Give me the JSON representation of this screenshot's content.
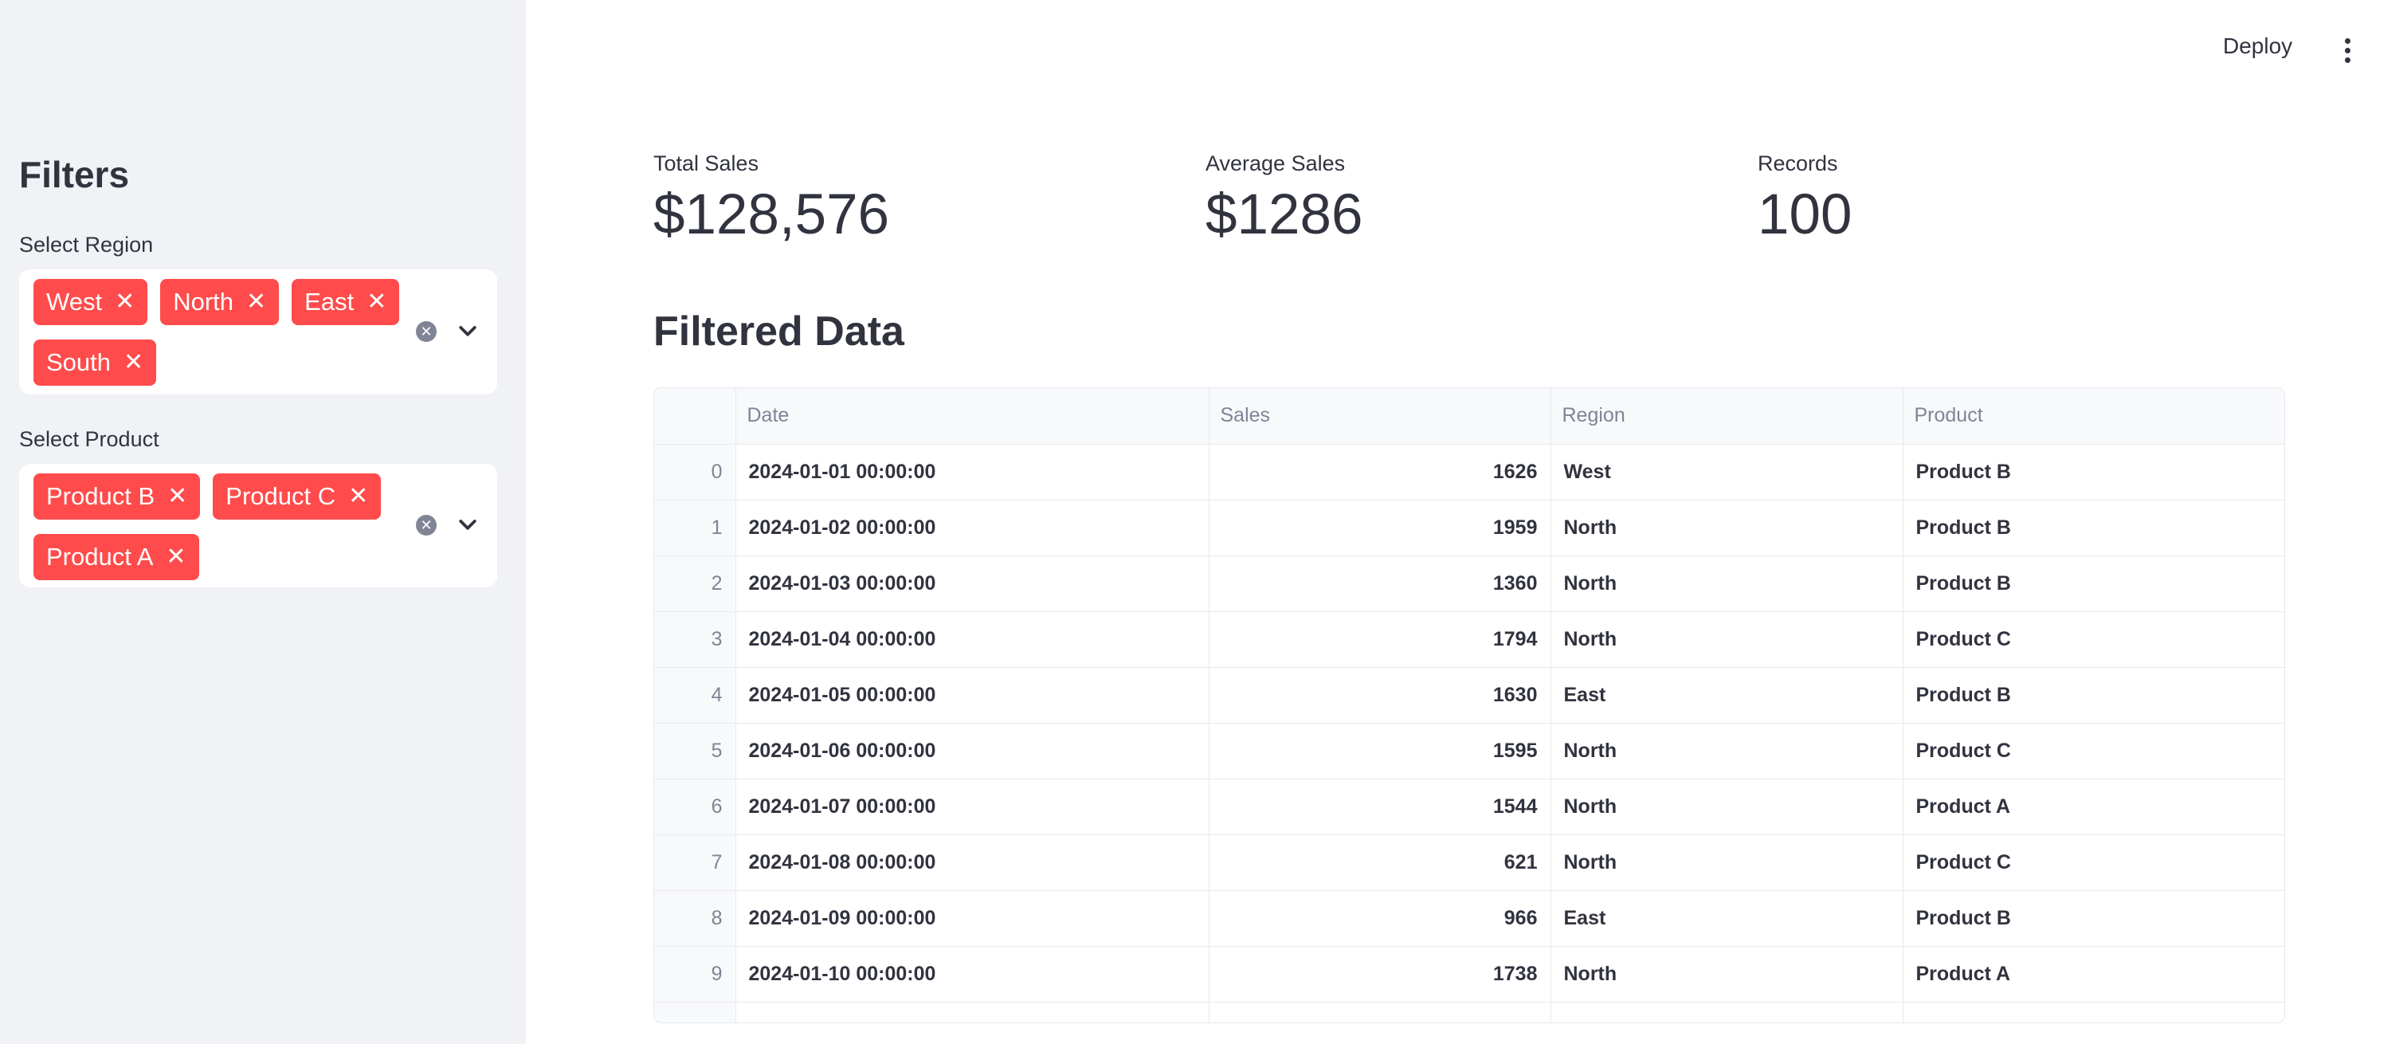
{
  "header": {
    "deploy_label": "Deploy"
  },
  "sidebar": {
    "title": "Filters",
    "region": {
      "label": "Select Region",
      "selected": [
        "West",
        "North",
        "East",
        "South"
      ]
    },
    "product": {
      "label": "Select Product",
      "selected": [
        "Product B",
        "Product C",
        "Product A"
      ]
    }
  },
  "metrics": {
    "total_sales": {
      "label": "Total Sales",
      "value": "$128,576"
    },
    "average_sales": {
      "label": "Average Sales",
      "value": "$1286"
    },
    "records": {
      "label": "Records",
      "value": "100"
    }
  },
  "section_title": "Filtered Data",
  "table": {
    "columns": [
      "",
      "Date",
      "Sales",
      "Region",
      "Product"
    ],
    "rows": [
      [
        "0",
        "2024-01-01 00:00:00",
        "1626",
        "West",
        "Product B"
      ],
      [
        "1",
        "2024-01-02 00:00:00",
        "1959",
        "North",
        "Product B"
      ],
      [
        "2",
        "2024-01-03 00:00:00",
        "1360",
        "North",
        "Product B"
      ],
      [
        "3",
        "2024-01-04 00:00:00",
        "1794",
        "North",
        "Product C"
      ],
      [
        "4",
        "2024-01-05 00:00:00",
        "1630",
        "East",
        "Product B"
      ],
      [
        "5",
        "2024-01-06 00:00:00",
        "1595",
        "North",
        "Product C"
      ],
      [
        "6",
        "2024-01-07 00:00:00",
        "1544",
        "North",
        "Product A"
      ],
      [
        "7",
        "2024-01-08 00:00:00",
        "621",
        "North",
        "Product C"
      ],
      [
        "8",
        "2024-01-09 00:00:00",
        "966",
        "East",
        "Product B"
      ],
      [
        "9",
        "2024-01-10 00:00:00",
        "1738",
        "North",
        "Product A"
      ]
    ]
  },
  "colors": {
    "accent": "#ff4b4b",
    "sidebar_bg": "#f0f2f6",
    "text": "#31333f",
    "muted": "#808495"
  }
}
